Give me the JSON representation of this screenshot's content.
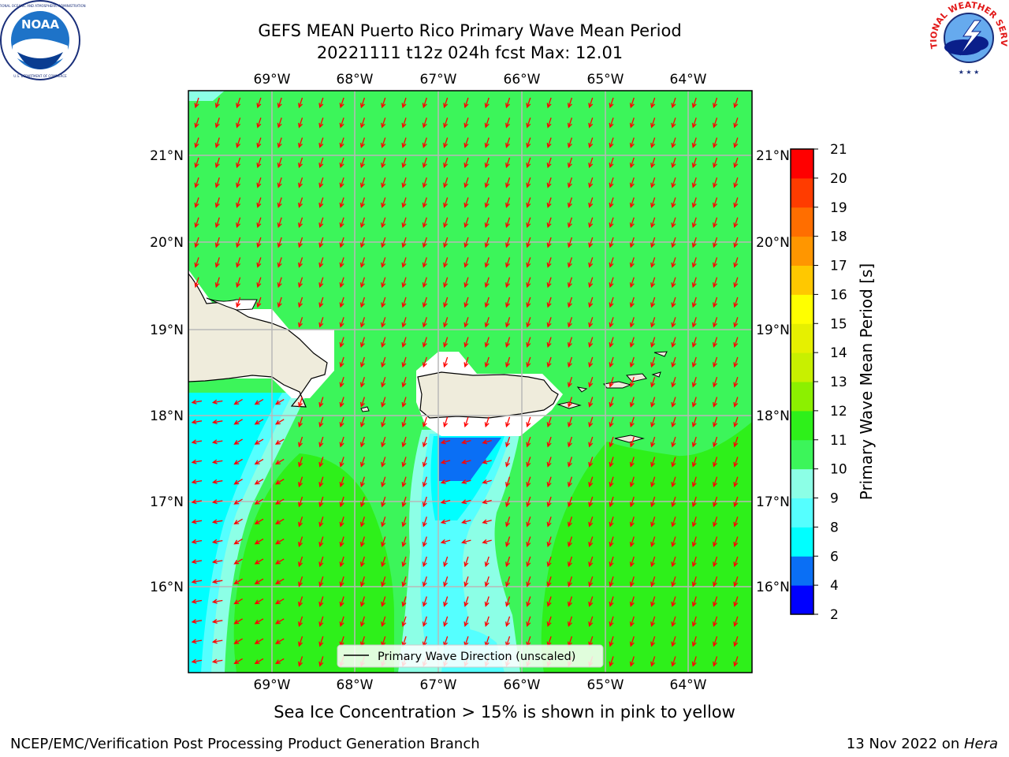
{
  "title": {
    "line1": "GEFS MEAN Puerto Rico Primary Wave Mean Period",
    "line2": "20221111 t12z 024h fcst   Max: 12.01"
  },
  "logos": {
    "noaa": {
      "text": "NOAA",
      "ring_text": "NATIONAL OCEANIC AND ATMOSPHERIC ADMINISTRATION · U.S. DEPARTMENT OF COMMERCE",
      "icon": "noaa-logo"
    },
    "nws": {
      "ring_text": "NATIONAL WEATHER SERVICE",
      "icon": "nws-logo"
    }
  },
  "map": {
    "lon_ticks": [
      "69°W",
      "68°W",
      "67°W",
      "66°W",
      "65°W",
      "64°W"
    ],
    "lat_ticks": [
      "21°N",
      "20°N",
      "19°N",
      "18°N",
      "17°N",
      "16°N"
    ],
    "legend_label": "Primary Wave Direction (unscaled)",
    "arrow_color": "#ff0000",
    "land_color": "#efecdc",
    "arrow_direction": "toward SSW (north-northeast swell)"
  },
  "colorbar": {
    "label": "Primary Wave Mean Period [s]",
    "ticks": [
      "21",
      "20",
      "19",
      "18",
      "17",
      "16",
      "15",
      "14",
      "13",
      "12",
      "11",
      "10",
      "9",
      "8",
      "6",
      "4",
      "2"
    ],
    "levels": [
      {
        "range": "2-4",
        "color": "#0000ff"
      },
      {
        "range": "4-6",
        "color": "#0a6ff5"
      },
      {
        "range": "6-8",
        "color": "#00ffff"
      },
      {
        "range": "8-9",
        "color": "#55ffff"
      },
      {
        "range": "9-10",
        "color": "#8cffe6"
      },
      {
        "range": "10-11",
        "color": "#3cf55a"
      },
      {
        "range": "11-12",
        "color": "#2ef01a"
      },
      {
        "range": "12-13",
        "color": "#8cf000"
      },
      {
        "range": "13-14",
        "color": "#c8f000"
      },
      {
        "range": "14-15",
        "color": "#e6f000"
      },
      {
        "range": "15-16",
        "color": "#ffff00"
      },
      {
        "range": "16-17",
        "color": "#ffc800"
      },
      {
        "range": "17-18",
        "color": "#ff9600"
      },
      {
        "range": "18-19",
        "color": "#ff6e00"
      },
      {
        "range": "19-20",
        "color": "#ff3c00"
      },
      {
        "range": "20-21",
        "color": "#ff0000"
      }
    ]
  },
  "ice_note": "Sea Ice Concentration > 15% is shown in pink to yellow",
  "footer": {
    "left": "NCEP/EMC/Verification Post Processing Product Generation Branch",
    "right_prefix": "13 Nov 2022 on ",
    "right_machine": "Hera"
  }
}
